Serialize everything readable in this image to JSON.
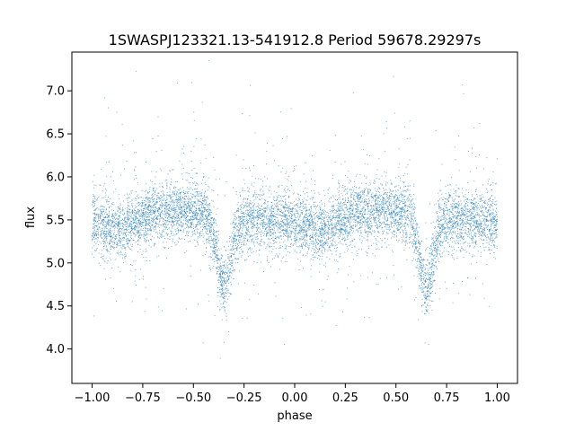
{
  "chart_data": {
    "type": "scatter",
    "title": "1SWASPJ123321.13-541912.8 Period 59678.29297s",
    "xlabel": "phase",
    "ylabel": "flux",
    "xlim": [
      -1.1,
      1.1
    ],
    "ylim": [
      3.6,
      7.45
    ],
    "x_ticks": [
      -1.0,
      -0.75,
      -0.5,
      -0.25,
      0.0,
      0.25,
      0.5,
      0.75,
      1.0
    ],
    "x_tick_labels": [
      "−1.00",
      "−0.75",
      "−0.50",
      "−0.25",
      "0.00",
      "0.25",
      "0.50",
      "0.75",
      "1.00"
    ],
    "y_ticks": [
      4.0,
      4.5,
      5.0,
      5.5,
      6.0,
      6.5,
      7.0
    ],
    "y_tick_labels": [
      "4.0",
      "4.5",
      "5.0",
      "5.5",
      "6.0",
      "6.5",
      "7.0"
    ],
    "grid": false,
    "marker_color": "#1f77b4",
    "series": [
      {
        "x_range": [
          -1.0,
          1.0
        ],
        "baseline_flux": 5.55,
        "primary_minimum": {
          "phase": 0.65,
          "flux": 4.75
        },
        "secondary_minimum": {
          "phase": 0.15,
          "flux": 5.4
        },
        "flux_scatter": 0.25
      }
    ]
  }
}
